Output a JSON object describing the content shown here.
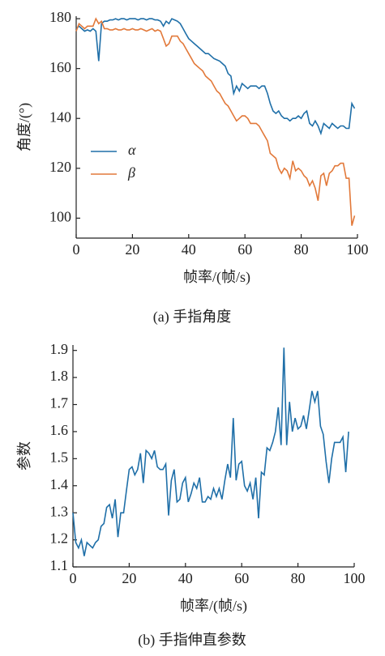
{
  "chart_data": [
    {
      "type": "line",
      "title": "(a) 手指角度",
      "xlabel": "帧率/(帧/s)",
      "ylabel": "角度/(°)",
      "xlim": [
        0,
        100
      ],
      "xticks": [
        0,
        20,
        40,
        60,
        80,
        100
      ],
      "ylim": [
        92,
        181
      ],
      "yticks": [
        100,
        120,
        140,
        160,
        180
      ],
      "legend": "center left",
      "x": [
        0,
        1,
        2,
        3,
        4,
        5,
        6,
        7,
        8,
        9,
        10,
        11,
        12,
        13,
        14,
        15,
        16,
        17,
        18,
        19,
        20,
        21,
        22,
        23,
        24,
        25,
        26,
        27,
        28,
        29,
        30,
        31,
        32,
        33,
        34,
        35,
        36,
        37,
        38,
        39,
        40,
        41,
        42,
        43,
        44,
        45,
        46,
        47,
        48,
        49,
        50,
        51,
        52,
        53,
        54,
        55,
        56,
        57,
        58,
        59,
        60,
        61,
        62,
        63,
        64,
        65,
        66,
        67,
        68,
        69,
        70,
        71,
        72,
        73,
        74,
        75,
        76,
        77,
        78,
        79,
        80,
        81,
        82,
        83,
        84,
        85,
        86,
        87,
        88,
        89,
        90,
        91,
        92,
        93,
        94,
        95,
        96,
        97,
        98,
        99
      ],
      "series": [
        {
          "name": "α",
          "color": "#1f6fa8",
          "values": [
            176,
            177,
            176,
            175,
            175.5,
            175,
            176,
            175,
            163,
            178,
            179,
            179,
            179.5,
            179.5,
            180,
            179.5,
            180,
            180,
            179.5,
            180,
            180,
            180,
            179.5,
            180,
            180,
            179.5,
            180,
            180,
            179.5,
            179.5,
            179,
            177,
            179,
            178,
            180,
            179.5,
            179,
            178,
            176,
            174,
            172,
            171,
            170,
            169,
            168,
            167,
            166,
            166,
            165,
            164,
            163.5,
            163,
            162,
            161,
            158,
            157,
            150,
            153,
            151,
            154,
            153,
            152,
            153,
            153,
            153,
            152,
            153,
            153,
            150,
            146,
            143,
            142,
            143,
            141,
            140,
            140,
            139,
            140,
            140,
            141,
            140,
            142,
            143,
            138,
            137,
            139,
            137,
            134,
            138,
            137,
            136,
            138,
            137,
            136,
            137,
            137,
            136,
            136,
            146,
            144
          ]
        },
        {
          "name": "β",
          "color": "#e2793a",
          "values": [
            175,
            178,
            177,
            176,
            177,
            177,
            177,
            180,
            178,
            179,
            176,
            176,
            175.5,
            175.5,
            176,
            175.5,
            175.5,
            176,
            175.5,
            175.5,
            176,
            175.5,
            175.5,
            176,
            175.5,
            175,
            175.5,
            176,
            175,
            175.5,
            175,
            172,
            169,
            170,
            173,
            173,
            173,
            171,
            170,
            168,
            166,
            164,
            162,
            161,
            160,
            159,
            157,
            156,
            155,
            153,
            151,
            150,
            148,
            146,
            145,
            143,
            141,
            139,
            140,
            141,
            141,
            140,
            138,
            138,
            138,
            137,
            135,
            133,
            131,
            126,
            125,
            124,
            120,
            118,
            120,
            119,
            116,
            123,
            119,
            120,
            119,
            117,
            116,
            113,
            115,
            112,
            107,
            117,
            118,
            113,
            118,
            119,
            121,
            121,
            122,
            122,
            116,
            116,
            97,
            101
          ]
        }
      ]
    },
    {
      "type": "line",
      "title": "(b) 手指伸直参数",
      "xlabel": "帧率/(帧/s)",
      "ylabel": "参数",
      "xlim": [
        0,
        100
      ],
      "xticks": [
        0,
        20,
        40,
        60,
        80,
        100
      ],
      "ylim": [
        1.1,
        1.92
      ],
      "yticks": [
        1.1,
        1.2,
        1.3,
        1.4,
        1.5,
        1.6,
        1.7,
        1.8,
        1.9
      ],
      "color": "#1f6fa8",
      "x": [
        0,
        1,
        2,
        3,
        4,
        5,
        6,
        7,
        8,
        9,
        10,
        11,
        12,
        13,
        14,
        15,
        16,
        17,
        18,
        19,
        20,
        21,
        22,
        23,
        24,
        25,
        26,
        27,
        28,
        29,
        30,
        31,
        32,
        33,
        34,
        35,
        36,
        37,
        38,
        39,
        40,
        41,
        42,
        43,
        44,
        45,
        46,
        47,
        48,
        49,
        50,
        51,
        52,
        53,
        54,
        55,
        56,
        57,
        58,
        59,
        60,
        61,
        62,
        63,
        64,
        65,
        66,
        67,
        68,
        69,
        70,
        71,
        72,
        73,
        74,
        75,
        76,
        77,
        78,
        79,
        80,
        81,
        82,
        83,
        84,
        85,
        86,
        87,
        88,
        89,
        90,
        91,
        92,
        93,
        94,
        95,
        96,
        97,
        98
      ],
      "values": [
        1.3,
        1.19,
        1.17,
        1.2,
        1.14,
        1.19,
        1.18,
        1.17,
        1.19,
        1.2,
        1.25,
        1.26,
        1.32,
        1.33,
        1.28,
        1.35,
        1.21,
        1.3,
        1.3,
        1.38,
        1.46,
        1.47,
        1.44,
        1.46,
        1.52,
        1.41,
        1.53,
        1.52,
        1.5,
        1.53,
        1.47,
        1.46,
        1.46,
        1.48,
        1.29,
        1.42,
        1.46,
        1.34,
        1.35,
        1.41,
        1.43,
        1.34,
        1.37,
        1.41,
        1.39,
        1.43,
        1.34,
        1.34,
        1.36,
        1.35,
        1.39,
        1.36,
        1.39,
        1.35,
        1.42,
        1.48,
        1.43,
        1.65,
        1.42,
        1.48,
        1.49,
        1.4,
        1.38,
        1.41,
        1.35,
        1.43,
        1.28,
        1.45,
        1.44,
        1.54,
        1.53,
        1.56,
        1.6,
        1.69,
        1.55,
        1.91,
        1.55,
        1.71,
        1.6,
        1.65,
        1.61,
        1.62,
        1.66,
        1.61,
        1.68,
        1.75,
        1.71,
        1.75,
        1.62,
        1.59,
        1.49,
        1.41,
        1.5,
        1.56,
        1.56,
        1.56,
        1.58,
        1.45,
        1.6
      ]
    }
  ]
}
